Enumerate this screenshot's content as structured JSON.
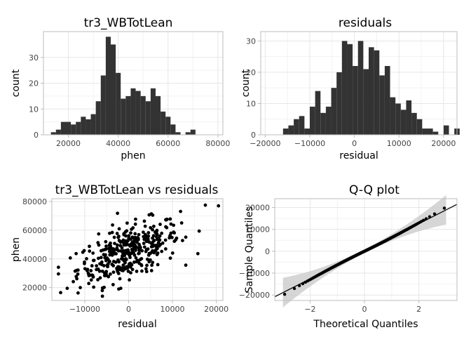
{
  "chart_data": [
    {
      "type": "bar",
      "title": "tr3_WBTotLean",
      "xlabel": "phen",
      "ylabel": "count",
      "xlim": [
        10000,
        82000
      ],
      "ylim": [
        0,
        40
      ],
      "xticks": [
        20000,
        40000,
        60000,
        80000
      ],
      "yticks": [
        0,
        10,
        20,
        30
      ],
      "bin_start": 13000,
      "bin_width": 2000,
      "values": [
        1,
        2,
        5,
        5,
        4,
        5,
        7,
        6,
        8,
        13,
        23,
        38,
        35,
        24,
        14,
        15,
        18,
        17,
        15,
        13,
        18,
        15,
        9,
        7,
        4,
        1,
        0,
        1,
        2
      ],
      "grid": true
    },
    {
      "type": "bar",
      "title": "residuals",
      "xlabel": "residual",
      "ylabel": "count",
      "xlim": [
        -21000,
        23000
      ],
      "ylim": [
        0,
        33
      ],
      "xticks": [
        -20000,
        -10000,
        0,
        10000,
        20000
      ],
      "yticks": [
        0,
        10,
        20,
        30
      ],
      "bin_start": -16000,
      "bin_width": 1200,
      "values": [
        2,
        3,
        5,
        6,
        2,
        9,
        14,
        7,
        9,
        15,
        20,
        30,
        29,
        22,
        30,
        21,
        28,
        27,
        19,
        22,
        12,
        10,
        8,
        11,
        7,
        5,
        2,
        2,
        1,
        0,
        3,
        0,
        2
      ],
      "grid": true
    },
    {
      "type": "scatter",
      "title": "tr3_WBTotLean vs residuals",
      "xlabel": "residual",
      "ylabel": "phen",
      "xlim": [
        -17500,
        21500
      ],
      "ylim": [
        11000,
        82000
      ],
      "xticks": [
        -10000,
        0,
        10000,
        20000
      ],
      "yticks": [
        20000,
        40000,
        60000,
        80000
      ],
      "grid": true
    },
    {
      "type": "scatter",
      "title": "Q-Q plot",
      "xlabel": "Theoretical Quantiles",
      "ylabel": "Sample Quantiles",
      "xlim": [
        -3.3,
        3.4
      ],
      "ylim": [
        -22500,
        24000
      ],
      "xticks": [
        -2,
        0,
        2
      ],
      "yticks": [
        -20000,
        -10000,
        0,
        10000,
        20000
      ],
      "reference_line": {
        "intercept": 0,
        "slope": 6300
      },
      "grid": true
    }
  ]
}
